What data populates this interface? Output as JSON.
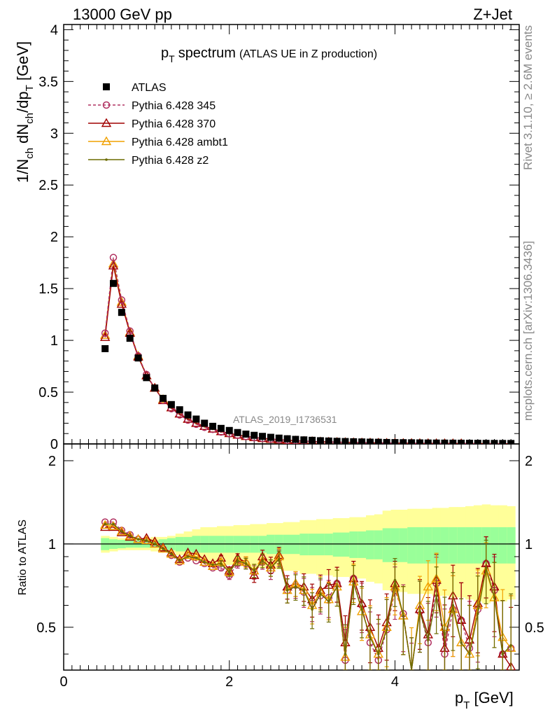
{
  "header": {
    "left": "13000 GeV pp",
    "right": "Z+Jet"
  },
  "side_labels": {
    "rivet": "Rivet 3.1.10, ≥ 2.6M events",
    "mcplots": "mcplots.cern.ch [arXiv:1306.3436]"
  },
  "watermark": "ATLAS_2019_I1736531",
  "colors": {
    "atlas": "#000000",
    "p345": "#b03060",
    "p370": "#a00000",
    "ambt1": "#f0a000",
    "z2": "#6b6b00",
    "band_inner": "#99ff99",
    "band_outer": "#ffff99"
  },
  "chart_data": [
    {
      "type": "line",
      "title_main": "p",
      "title_sub": "T",
      "title_word": "spectrum",
      "title_note": "(ATLAS UE in Z production)",
      "ylabel": {
        "parts": [
          {
            "t": "1/N",
            "sub": false
          },
          {
            "t": "ch",
            "sub": true
          },
          {
            "t": " dN",
            "sub": false
          },
          {
            "t": "ch",
            "sub": true
          },
          {
            "t": "/dp",
            "sub": false
          },
          {
            "t": "T",
            "sub": true
          },
          {
            "t": " [GeV]",
            "sub": false
          }
        ]
      },
      "xlim": [
        0,
        5.5
      ],
      "ylim": [
        0,
        4.05
      ],
      "yticks": [
        "0",
        "0.5",
        "1",
        "1.5",
        "2",
        "2.5",
        "3",
        "3.5",
        "4"
      ],
      "grid": false,
      "legend_position": "top-left",
      "x": [
        0.5,
        0.6,
        0.7,
        0.8,
        0.9,
        1.0,
        1.1,
        1.2,
        1.3,
        1.4,
        1.5,
        1.6,
        1.7,
        1.8,
        1.9,
        2.0,
        2.1,
        2.2,
        2.3,
        2.4,
        2.5,
        2.6,
        2.7,
        2.8,
        2.9,
        3.0,
        3.1,
        3.2,
        3.3,
        3.4,
        3.5,
        3.6,
        3.7,
        3.8,
        3.9,
        4.0,
        4.1,
        4.2,
        4.3,
        4.4,
        4.5,
        4.6,
        4.7,
        4.8,
        4.9,
        5.0,
        5.1,
        5.2,
        5.3,
        5.4
      ],
      "series": [
        {
          "name": "ATLAS",
          "marker": "square",
          "color_key": "atlas",
          "values": [
            0.92,
            1.55,
            1.27,
            1.02,
            0.83,
            0.64,
            0.54,
            0.44,
            0.38,
            0.33,
            0.28,
            0.24,
            0.2,
            0.17,
            0.15,
            0.13,
            0.11,
            0.095,
            0.083,
            0.073,
            0.064,
            0.056,
            0.05,
            0.044,
            0.039,
            0.035,
            0.031,
            0.028,
            0.025,
            0.023,
            0.021,
            0.019,
            0.017,
            0.016,
            0.014,
            0.013,
            0.012,
            0.011,
            0.01,
            0.009,
            0.0085,
            0.008,
            0.0075,
            0.007,
            0.0065,
            0.006,
            0.0055,
            0.005,
            0.0047,
            0.0044
          ]
        },
        {
          "name": "Pythia 6.428 345",
          "marker": "circle",
          "dashed": true,
          "color_key": "p345",
          "values": [
            1.07,
            1.8,
            1.39,
            1.09,
            0.85,
            0.67,
            0.54,
            0.42,
            0.34,
            0.28,
            0.23,
            0.19,
            0.16,
            0.14,
            0.115,
            0.098,
            0.083,
            0.071,
            0.06,
            0.052,
            0.045,
            0.039,
            0.034,
            0.03,
            0.026,
            0.023,
            0.02,
            0.018,
            0.016,
            0.014,
            0.013,
            0.011,
            0.01,
            0.009,
            0.008,
            0.0073,
            0.0066,
            0.006,
            0.0054,
            0.0049,
            0.0045,
            0.0041,
            0.0037,
            0.0034,
            0.0031,
            0.0029,
            0.0026,
            0.0024,
            0.0022,
            0.002
          ]
        },
        {
          "name": "Pythia 6.428 370",
          "marker": "triangle",
          "color_key": "p370",
          "values": [
            1.03,
            1.72,
            1.35,
            1.07,
            0.84,
            0.66,
            0.54,
            0.42,
            0.35,
            0.29,
            0.24,
            0.2,
            0.17,
            0.145,
            0.12,
            0.102,
            0.087,
            0.074,
            0.063,
            0.054,
            0.047,
            0.041,
            0.036,
            0.031,
            0.027,
            0.024,
            0.021,
            0.019,
            0.017,
            0.015,
            0.013,
            0.012,
            0.011,
            0.0095,
            0.0085,
            0.0076,
            0.0068,
            0.0062,
            0.0056,
            0.0051,
            0.0046,
            0.0042,
            0.0038,
            0.0035,
            0.0032,
            0.003,
            0.0027,
            0.0025,
            0.0023,
            0.0021
          ]
        },
        {
          "name": "Pythia 6.428 ambt1",
          "marker": "triangle",
          "color_key": "ambt1",
          "values": [
            1.05,
            1.74,
            1.37,
            1.08,
            0.85,
            0.66,
            0.54,
            0.43,
            0.35,
            0.29,
            0.24,
            0.2,
            0.17,
            0.145,
            0.12,
            0.101,
            0.086,
            0.073,
            0.062,
            0.053,
            0.046,
            0.04,
            0.035,
            0.031,
            0.027,
            0.024,
            0.021,
            0.019,
            0.017,
            0.015,
            0.013,
            0.012,
            0.011,
            0.0095,
            0.0085,
            0.0076,
            0.0068,
            0.0062,
            0.0056,
            0.0051,
            0.0046,
            0.0042,
            0.0038,
            0.0035,
            0.0032,
            0.003,
            0.0027,
            0.0025,
            0.0023,
            0.0021
          ]
        },
        {
          "name": "Pythia 6.428 z2",
          "marker": "dot",
          "color_key": "z2",
          "values": [
            1.06,
            1.75,
            1.37,
            1.08,
            0.85,
            0.66,
            0.54,
            0.43,
            0.35,
            0.29,
            0.24,
            0.2,
            0.17,
            0.145,
            0.12,
            0.101,
            0.086,
            0.073,
            0.062,
            0.053,
            0.046,
            0.04,
            0.035,
            0.031,
            0.027,
            0.024,
            0.021,
            0.019,
            0.017,
            0.015,
            0.013,
            0.012,
            0.011,
            0.0095,
            0.0085,
            0.0076,
            0.0068,
            0.0062,
            0.0056,
            0.0051,
            0.0046,
            0.0042,
            0.0038,
            0.0035,
            0.0032,
            0.003,
            0.0027,
            0.0025,
            0.0023,
            0.0021
          ]
        }
      ]
    },
    {
      "type": "line",
      "ylabel": "Ratio to ATLAS",
      "xlabel_main": "p",
      "xlabel_sub": "T",
      "xlabel_unit": " [GeV]",
      "xlim": [
        0,
        5.5
      ],
      "ylim": [
        0.35,
        2.3
      ],
      "xticks": [
        "0",
        "2",
        "4"
      ],
      "yticks": [
        "0.5",
        "1",
        "2"
      ],
      "grid": false,
      "reference_line": 1,
      "bands": {
        "inner_halfwidth": [
          0.05,
          0.04,
          0.035,
          0.03,
          0.03,
          0.03,
          0.03,
          0.04,
          0.05,
          0.06,
          0.06,
          0.07,
          0.07,
          0.07,
          0.07,
          0.07,
          0.07,
          0.07,
          0.07,
          0.07,
          0.08,
          0.08,
          0.08,
          0.08,
          0.09,
          0.09,
          0.09,
          0.09,
          0.1,
          0.1,
          0.11,
          0.11,
          0.12,
          0.12,
          0.14,
          0.14,
          0.14,
          0.15,
          0.15,
          0.15,
          0.15,
          0.15,
          0.15,
          0.15,
          0.15,
          0.15,
          0.15,
          0.15,
          0.15,
          0.15
        ],
        "outer_halfwidth": [
          0.07,
          0.06,
          0.05,
          0.05,
          0.05,
          0.05,
          0.06,
          0.06,
          0.07,
          0.09,
          0.11,
          0.13,
          0.15,
          0.15,
          0.16,
          0.16,
          0.17,
          0.17,
          0.18,
          0.18,
          0.19,
          0.19,
          0.2,
          0.2,
          0.22,
          0.22,
          0.23,
          0.23,
          0.24,
          0.24,
          0.25,
          0.25,
          0.27,
          0.28,
          0.32,
          0.33,
          0.33,
          0.34,
          0.34,
          0.34,
          0.35,
          0.35,
          0.36,
          0.36,
          0.37,
          0.38,
          0.39,
          0.38,
          0.38,
          0.37
        ]
      },
      "series": [
        {
          "name": "Pythia 6.428 345",
          "marker": "circle",
          "dashed": true,
          "color_key": "p345",
          "values": [
            1.2,
            1.2,
            1.12,
            1.08,
            1.04,
            1.03,
            1.0,
            0.96,
            0.91,
            0.86,
            0.89,
            0.87,
            0.85,
            0.82,
            0.82,
            0.77,
            0.85,
            0.85,
            0.79,
            0.86,
            0.8,
            0.89,
            0.68,
            0.71,
            0.67,
            0.61,
            0.65,
            0.64,
            0.72,
            0.38,
            0.75,
            0.6,
            0.44,
            0.38,
            0.49,
            0.68,
            0.56,
            0.28,
            0.57,
            0.44,
            0.72,
            0.4,
            0.58,
            0.53,
            0.42,
            0.58,
            0.85,
            0.68,
            0.4,
            0.42
          ]
        },
        {
          "name": "Pythia 6.428 370",
          "marker": "triangle",
          "color_key": "p370",
          "values": [
            1.15,
            1.15,
            1.1,
            1.06,
            1.04,
            1.05,
            1.02,
            0.97,
            0.93,
            0.88,
            0.93,
            0.92,
            0.88,
            0.85,
            0.89,
            0.8,
            0.89,
            0.86,
            0.77,
            0.9,
            0.84,
            0.91,
            0.7,
            0.72,
            0.7,
            0.63,
            0.68,
            0.71,
            0.72,
            0.44,
            0.75,
            0.61,
            0.5,
            0.42,
            0.52,
            0.72,
            0.55,
            0.3,
            0.58,
            0.47,
            0.74,
            0.42,
            0.65,
            0.53,
            0.45,
            0.61,
            0.85,
            0.7,
            0.4,
            0.36
          ]
        },
        {
          "name": "Pythia 6.428 ambt1",
          "marker": "triangle",
          "color_key": "ambt1",
          "values": [
            1.17,
            1.16,
            1.11,
            1.07,
            1.04,
            1.03,
            1.0,
            0.96,
            0.92,
            0.87,
            0.91,
            0.9,
            0.86,
            0.83,
            0.86,
            0.79,
            0.87,
            0.86,
            0.8,
            0.87,
            0.82,
            0.9,
            0.68,
            0.72,
            0.68,
            0.6,
            0.67,
            0.63,
            0.7,
            0.39,
            0.73,
            0.57,
            0.47,
            0.4,
            0.5,
            0.7,
            0.55,
            0.34,
            0.6,
            0.7,
            0.75,
            0.5,
            0.58,
            0.44,
            0.4,
            0.6,
            0.8,
            0.64,
            0.46,
            0.42
          ]
        },
        {
          "name": "Pythia 6.428 z2",
          "marker": "dot",
          "color_key": "z2",
          "values": [
            1.18,
            1.18,
            1.11,
            1.07,
            1.04,
            1.03,
            1.0,
            0.96,
            0.92,
            0.87,
            0.9,
            0.89,
            0.86,
            0.84,
            0.85,
            0.79,
            0.87,
            0.85,
            0.8,
            0.87,
            0.82,
            0.88,
            0.68,
            0.7,
            0.68,
            0.58,
            0.66,
            0.62,
            0.7,
            0.4,
            0.72,
            0.58,
            0.46,
            0.4,
            0.49,
            0.74,
            0.55,
            0.3,
            0.57,
            0.45,
            0.65,
            0.46,
            0.6,
            0.44,
            0.4,
            0.56,
            0.82,
            0.64,
            0.4,
            0.43
          ]
        }
      ]
    }
  ]
}
